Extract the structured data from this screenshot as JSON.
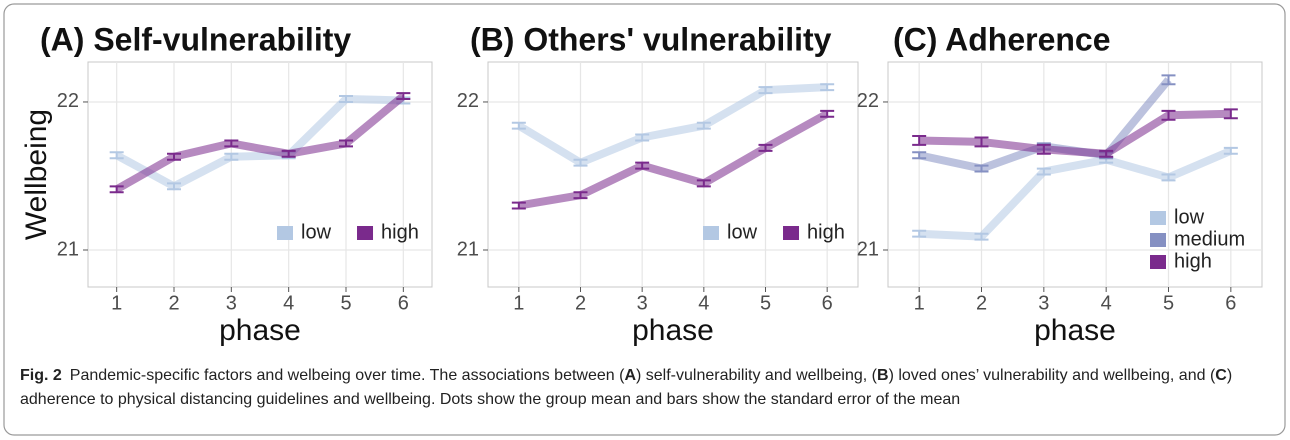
{
  "chart_data": [
    {
      "type": "line",
      "title": "(A) Self-vulnerability",
      "x_label": "phase",
      "y_label": "Wellbeing",
      "x": [
        1,
        2,
        3,
        4,
        5,
        6
      ],
      "xlim": [
        0.5,
        6.5
      ],
      "xticks": [
        1,
        2,
        3,
        4,
        5,
        6
      ],
      "ylim": [
        20.75,
        22.27
      ],
      "yticks": [
        21,
        22
      ],
      "grid": true,
      "legend": "bottom-right",
      "legend_direction": "horizontal",
      "series": [
        {
          "name": "low",
          "color": "#b3c8e3",
          "values": [
            21.64,
            21.43,
            21.63,
            21.64,
            22.02,
            22.01
          ],
          "errors": [
            0.02,
            0.02,
            0.02,
            0.02,
            0.02,
            0.02
          ]
        },
        {
          "name": "high",
          "color": "#7a2a8c",
          "values": [
            21.41,
            21.63,
            21.72,
            21.65,
            21.72,
            22.04
          ],
          "errors": [
            0.02,
            0.02,
            0.02,
            0.02,
            0.02,
            0.02
          ]
        }
      ]
    },
    {
      "type": "line",
      "title": "(B) Others' vulnerability",
      "x_label": "phase",
      "x": [
        1,
        2,
        3,
        4,
        5,
        6
      ],
      "xlim": [
        0.5,
        6.5
      ],
      "xticks": [
        1,
        2,
        3,
        4,
        5,
        6
      ],
      "ylim": [
        20.75,
        22.27
      ],
      "yticks": [
        21,
        22
      ],
      "grid": true,
      "legend": "bottom-right",
      "legend_direction": "horizontal",
      "series": [
        {
          "name": "low",
          "color": "#b3c8e3",
          "values": [
            21.84,
            21.59,
            21.76,
            21.84,
            22.08,
            22.1
          ],
          "errors": [
            0.02,
            0.02,
            0.02,
            0.02,
            0.02,
            0.02
          ]
        },
        {
          "name": "high",
          "color": "#7a2a8c",
          "values": [
            21.3,
            21.37,
            21.57,
            21.45,
            21.69,
            21.92
          ],
          "errors": [
            0.02,
            0.02,
            0.02,
            0.02,
            0.02,
            0.02
          ]
        }
      ]
    },
    {
      "type": "line",
      "title": "(C) Adherence",
      "x_label": "phase",
      "x": [
        1,
        2,
        3,
        4,
        5,
        6
      ],
      "xlim": [
        0.5,
        6.5
      ],
      "xticks": [
        1,
        2,
        3,
        4,
        5,
        6
      ],
      "ylim": [
        20.75,
        22.27
      ],
      "yticks": [
        21,
        22
      ],
      "grid": true,
      "legend": "bottom-right",
      "legend_direction": "vertical",
      "series": [
        {
          "name": "low",
          "color": "#b3c8e3",
          "values": [
            21.11,
            21.09,
            21.53,
            21.61,
            21.49,
            21.67
          ],
          "errors": [
            0.02,
            0.02,
            0.02,
            0.02,
            0.02,
            0.02
          ]
        },
        {
          "name": "medium",
          "color": "#8590c2",
          "values": [
            21.64,
            21.55,
            21.7,
            21.64,
            22.15,
            null
          ],
          "errors": [
            0.02,
            0.02,
            0.02,
            0.02,
            0.03,
            null
          ]
        },
        {
          "name": "high",
          "color": "#7a2a8c",
          "values": [
            21.74,
            21.73,
            21.68,
            21.65,
            21.91,
            21.92
          ],
          "errors": [
            0.03,
            0.03,
            0.03,
            0.02,
            0.03,
            0.03
          ]
        }
      ]
    }
  ],
  "caption": {
    "label": "Fig. 2",
    "segments": [
      {
        "text": "Pandemic-specific factors and welbeing over time. The associations between (",
        "bold": false
      },
      {
        "text": "A",
        "bold": true
      },
      {
        "text": ") self-vulnerability and wellbeing, (",
        "bold": false
      },
      {
        "text": "B",
        "bold": true
      },
      {
        "text": ") loved ones’ vulnerability and wellbeing, and (",
        "bold": false
      },
      {
        "text": "C",
        "bold": true
      },
      {
        "text": ") adherence to physical distancing guidelines and wellbeing. Dots show the group mean and bars show the standard error of the mean",
        "bold": false
      }
    ]
  }
}
